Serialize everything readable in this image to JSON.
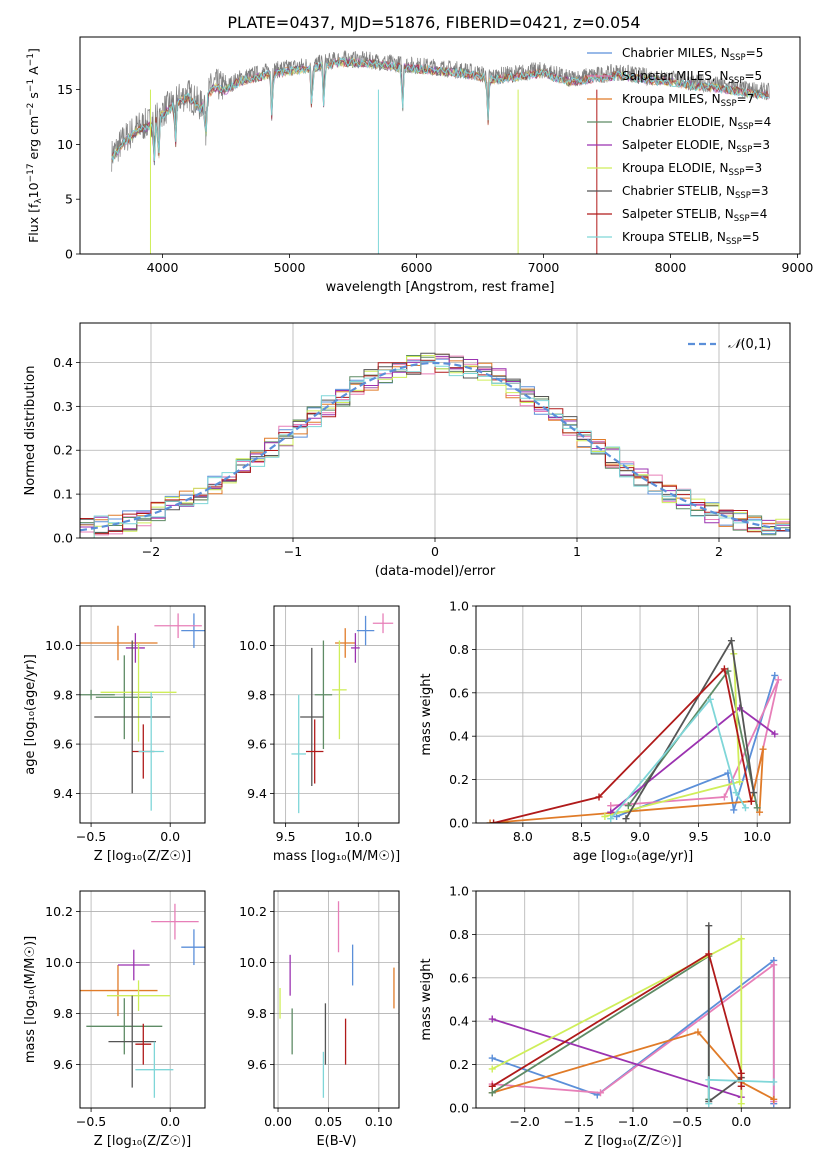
{
  "figure_title": "PLATE=0437, MJD=51876, FIBERID=0421, z=0.054",
  "colors": {
    "chabrier_miles": "#5b8fd9",
    "salpeter_miles": "#e77fb8",
    "kroupa_miles": "#e07b28",
    "chabrier_elodie": "#5e8b65",
    "salpeter_elodie": "#9b32b0",
    "kroupa_elodie": "#cfee5a",
    "chabrier_stelib": "#555555",
    "salpeter_stelib": "#b01a1a",
    "kroupa_stelib": "#7fd6d8",
    "grid": "#b0b0b0",
    "data_gray": "#808080",
    "normal_curve": "#5b8fd9"
  },
  "chart_data": [
    {
      "id": "spectrum",
      "type": "line",
      "xlabel": "wavelength [Angstrom, rest frame]",
      "ylabel_parts": {
        "pre": "Flux [f",
        "sub1": "λ",
        "mid": "10",
        "sup1": "−17",
        "post": " erg cm",
        "sup2": "−2",
        "post2": " s",
        "sup3": "−1",
        "post3": " A",
        "sup4": "−1",
        "post4": "]"
      },
      "xlim": [
        3350,
        9020
      ],
      "ylim": [
        0,
        19.8
      ],
      "xticks": [
        4000,
        5000,
        6000,
        7000,
        8000,
        9000
      ],
      "yticks": [
        0,
        5,
        10,
        15
      ],
      "continuum": {
        "x": [
          3600,
          3700,
          3800,
          3900,
          4000,
          4100,
          4200,
          4300,
          4400,
          4500,
          4600,
          4800,
          5000,
          5200,
          5400,
          5600,
          5800,
          6000,
          6200,
          6400,
          6600,
          6800,
          7000,
          7200,
          7400,
          7600,
          7800,
          8000,
          8200,
          8400,
          8600,
          8780
        ],
        "y": [
          9.0,
          10.5,
          11.5,
          12.0,
          13.0,
          14.0,
          14.6,
          13.5,
          15.5,
          15.2,
          16.0,
          16.6,
          17.0,
          17.3,
          17.8,
          17.7,
          17.4,
          17.2,
          17.0,
          16.7,
          16.2,
          16.5,
          16.8,
          16.0,
          16.3,
          16.6,
          16.2,
          16.0,
          15.6,
          15.4,
          15.0,
          14.8
        ]
      },
      "legend": [
        {
          "label": "Chabrier MILES, N",
          "n": "=5",
          "color": "#5b8fd9"
        },
        {
          "label": "Salpeter MILES, N",
          "n": "=5",
          "color": "#e77fb8"
        },
        {
          "label": "Kroupa MILES, N",
          "n": "=7",
          "color": "#e07b28"
        },
        {
          "label": "Chabrier ELODIE, N",
          "n": "=4",
          "color": "#5e8b65"
        },
        {
          "label": "Salpeter ELODIE, N",
          "n": "=3",
          "color": "#9b32b0"
        },
        {
          "label": "Kroupa ELODIE, N",
          "n": "=3",
          "color": "#cfee5a"
        },
        {
          "label": "Chabrier STELIB, N",
          "n": "=3",
          "color": "#555555"
        },
        {
          "label": "Salpeter STELIB, N",
          "n": "=4",
          "color": "#b01a1a"
        },
        {
          "label": "Kroupa STELIB, N",
          "n": "=5",
          "color": "#7fd6d8"
        }
      ],
      "legend_sub": "SSP"
    },
    {
      "id": "residuals",
      "type": "histogram",
      "xlabel": "(data-model)/error",
      "ylabel": "Normed distribution",
      "xlim": [
        -2.5,
        2.5
      ],
      "ylim": [
        0,
        0.49
      ],
      "xticks": [
        -2,
        -1,
        0,
        1,
        2
      ],
      "yticks": [
        0.0,
        0.1,
        0.2,
        0.3,
        0.4
      ],
      "bin_width": 0.1,
      "legend_label": "(0,1)",
      "legend_symbol": "𝒩"
    },
    {
      "id": "age_vs_Z",
      "type": "scatter",
      "xlabel": "Z [log₁₀(Z/Z☉)]",
      "ylabel": "age  [log₁₀(age/yr)]",
      "xlim": [
        -0.57,
        0.22
      ],
      "ylim": [
        9.28,
        10.16
      ],
      "xticks": [
        -0.5,
        0.0
      ],
      "yticks": [
        9.4,
        9.6,
        9.8,
        10.0
      ],
      "points": [
        {
          "x": 0.15,
          "y": 10.06,
          "xerr": 0.08,
          "yerr": 0.07,
          "color": "#5b8fd9"
        },
        {
          "x": 0.05,
          "y": 10.08,
          "xerr": 0.15,
          "yerr": 0.05,
          "color": "#e77fb8"
        },
        {
          "x": -0.33,
          "y": 10.01,
          "xerr": 0.25,
          "yerr": 0.07,
          "color": "#e07b28"
        },
        {
          "x": -0.29,
          "y": 9.79,
          "xerr": 0.18,
          "yerr": 0.17,
          "color": "#5e8b65"
        },
        {
          "x": -0.22,
          "y": 9.99,
          "xerr": 0.06,
          "yerr": 0.06,
          "color": "#9b32b0"
        },
        {
          "x": -0.2,
          "y": 9.81,
          "xerr": 0.24,
          "yerr": 0.2,
          "color": "#cfee5a"
        },
        {
          "x": -0.24,
          "y": 9.71,
          "xerr": 0.24,
          "yerr": 0.31,
          "color": "#555555"
        },
        {
          "x": -0.17,
          "y": 9.57,
          "xerr": 0.07,
          "yerr": 0.11,
          "color": "#b01a1a"
        },
        {
          "x": -0.12,
          "y": 9.57,
          "xerr": 0.08,
          "yerr": 0.24,
          "color": "#7fd6d8"
        },
        {
          "x": -0.5,
          "y": 9.8,
          "xerr": 0.15,
          "yerr": 0.02,
          "color": "#5e8b65"
        }
      ]
    },
    {
      "id": "age_vs_mass",
      "type": "scatter",
      "xlabel": "mass [log₁₀(M/M☉)]",
      "ylabel": "",
      "xlim": [
        9.42,
        10.28
      ],
      "ylim": [
        9.28,
        10.16
      ],
      "xticks": [
        9.5,
        10.0
      ],
      "yticks": [
        9.4,
        9.6,
        9.8,
        10.0
      ],
      "points": [
        {
          "x": 10.05,
          "y": 10.06,
          "xerr": 0.06,
          "yerr": 0.06,
          "color": "#5b8fd9"
        },
        {
          "x": 10.17,
          "y": 10.09,
          "xerr": 0.07,
          "yerr": 0.04,
          "color": "#e77fb8"
        },
        {
          "x": 9.91,
          "y": 10.01,
          "xerr": 0.07,
          "yerr": 0.06,
          "color": "#e07b28"
        },
        {
          "x": 9.76,
          "y": 9.8,
          "xerr": 0.06,
          "yerr": 0.22,
          "color": "#5e8b65"
        },
        {
          "x": 9.98,
          "y": 9.99,
          "xerr": 0.03,
          "yerr": 0.06,
          "color": "#9b32b0"
        },
        {
          "x": 9.87,
          "y": 9.82,
          "xerr": 0.05,
          "yerr": 0.2,
          "color": "#cfee5a"
        },
        {
          "x": 9.68,
          "y": 9.71,
          "xerr": 0.08,
          "yerr": 0.28,
          "color": "#555555"
        },
        {
          "x": 9.7,
          "y": 9.57,
          "xerr": 0.06,
          "yerr": 0.13,
          "color": "#b01a1a"
        },
        {
          "x": 9.59,
          "y": 9.56,
          "xerr": 0.05,
          "yerr": 0.24,
          "color": "#7fd6d8"
        }
      ]
    },
    {
      "id": "weight_vs_age",
      "type": "line",
      "xlabel": "age  [log₁₀(age/yr)]",
      "ylabel": "mass weight",
      "xlim": [
        7.6,
        10.28
      ],
      "ylim": [
        0,
        1.0
      ],
      "xticks": [
        8.0,
        8.5,
        9.0,
        9.5,
        10.0
      ],
      "yticks": [
        0.0,
        0.2,
        0.4,
        0.6,
        0.8,
        1.0
      ],
      "series": [
        {
          "color": "#5b8fd9",
          "x": [
            8.8,
            9.75,
            9.8,
            10.15
          ],
          "y": [
            0.03,
            0.23,
            0.06,
            0.68
          ]
        },
        {
          "color": "#e77fb8",
          "x": [
            8.75,
            9.72,
            10.18,
            9.95
          ],
          "y": [
            0.08,
            0.12,
            0.66,
            0.1
          ]
        },
        {
          "color": "#e07b28",
          "x": [
            7.72,
            9.95,
            10.05,
            10.02
          ],
          "y": [
            0.0,
            0.1,
            0.34,
            0.05
          ]
        },
        {
          "color": "#5e8b65",
          "x": [
            8.9,
            9.75,
            10.0
          ],
          "y": [
            0.08,
            0.7,
            0.07
          ]
        },
        {
          "color": "#9b32b0",
          "x": [
            8.75,
            9.85,
            10.15
          ],
          "y": [
            0.05,
            0.53,
            0.41
          ]
        },
        {
          "color": "#cfee5a",
          "x": [
            8.7,
            9.85,
            9.8
          ],
          "y": [
            0.03,
            0.19,
            0.78
          ]
        },
        {
          "color": "#555555",
          "x": [
            8.88,
            9.78,
            9.97
          ],
          "y": [
            0.02,
            0.84,
            0.14
          ]
        },
        {
          "color": "#b01a1a",
          "x": [
            7.75,
            8.65,
            9.72,
            9.95
          ],
          "y": [
            0.0,
            0.12,
            0.71,
            0.1
          ]
        },
        {
          "color": "#7fd6d8",
          "x": [
            8.75,
            9.6,
            9.82,
            9.9
          ],
          "y": [
            0.02,
            0.57,
            0.14,
            0.07
          ]
        }
      ]
    },
    {
      "id": "mass_vs_Z",
      "type": "scatter",
      "xlabel": "Z [log₁₀(Z/Z☉)]",
      "ylabel": "mass [log₁₀(M/M☉)]",
      "xlim": [
        -0.57,
        0.22
      ],
      "ylim": [
        9.43,
        10.28
      ],
      "xticks": [
        -0.5,
        0.0
      ],
      "yticks": [
        9.6,
        9.8,
        10.0,
        10.2
      ],
      "points": [
        {
          "x": 0.15,
          "y": 10.06,
          "xerr": 0.08,
          "yerr": 0.07,
          "color": "#5b8fd9"
        },
        {
          "x": 0.03,
          "y": 10.16,
          "xerr": 0.15,
          "yerr": 0.07,
          "color": "#e77fb8"
        },
        {
          "x": -0.33,
          "y": 9.89,
          "xerr": 0.25,
          "yerr": 0.1,
          "color": "#e07b28"
        },
        {
          "x": -0.29,
          "y": 9.75,
          "xerr": 0.24,
          "yerr": 0.11,
          "color": "#5e8b65"
        },
        {
          "x": -0.23,
          "y": 9.99,
          "xerr": 0.1,
          "yerr": 0.06,
          "color": "#9b32b0"
        },
        {
          "x": -0.2,
          "y": 9.87,
          "xerr": 0.2,
          "yerr": 0.06,
          "color": "#cfee5a"
        },
        {
          "x": -0.24,
          "y": 9.69,
          "xerr": 0.15,
          "yerr": 0.18,
          "color": "#555555"
        },
        {
          "x": -0.17,
          "y": 9.68,
          "xerr": 0.05,
          "yerr": 0.08,
          "color": "#b01a1a"
        },
        {
          "x": -0.1,
          "y": 9.58,
          "xerr": 0.12,
          "yerr": 0.11,
          "color": "#7fd6d8"
        }
      ]
    },
    {
      "id": "mass_vs_ebv",
      "type": "scatter",
      "xlabel": "E(B-V)",
      "ylabel": "",
      "xlim": [
        -0.004,
        0.12
      ],
      "ylim": [
        9.43,
        10.28
      ],
      "xticks": [
        0.0,
        0.05,
        0.1
      ],
      "yticks": [
        9.6,
        9.8,
        10.0,
        10.2
      ],
      "points": [
        {
          "x": 0.074,
          "y": 9.99,
          "yerr": 0.08,
          "color": "#5b8fd9"
        },
        {
          "x": 0.06,
          "y": 10.14,
          "yerr": 0.1,
          "color": "#e77fb8"
        },
        {
          "x": 0.115,
          "y": 9.9,
          "yerr": 0.08,
          "color": "#e07b28"
        },
        {
          "x": 0.014,
          "y": 9.73,
          "yerr": 0.09,
          "color": "#5e8b65"
        },
        {
          "x": 0.012,
          "y": 9.95,
          "yerr": 0.08,
          "color": "#9b32b0"
        },
        {
          "x": 0.002,
          "y": 9.84,
          "yerr": 0.06,
          "color": "#cfee5a"
        },
        {
          "x": 0.047,
          "y": 9.72,
          "yerr": 0.12,
          "color": "#555555"
        },
        {
          "x": 0.067,
          "y": 9.69,
          "yerr": 0.09,
          "color": "#b01a1a"
        },
        {
          "x": 0.045,
          "y": 9.56,
          "yerr": 0.09,
          "color": "#7fd6d8"
        }
      ]
    },
    {
      "id": "weight_vs_Z",
      "type": "line",
      "xlabel": "Z [log₁₀(Z/Z☉)]",
      "ylabel": "mass weight",
      "xlim": [
        -2.45,
        0.45
      ],
      "ylim": [
        0,
        1.0
      ],
      "xticks": [
        -2.0,
        -1.5,
        -1.0,
        -0.5,
        0.0
      ],
      "yticks": [
        0.0,
        0.2,
        0.4,
        0.6,
        0.8,
        1.0
      ],
      "series": [
        {
          "color": "#5b8fd9",
          "x": [
            -2.3,
            -1.33,
            0.3,
            0.3
          ],
          "y": [
            0.23,
            0.06,
            0.68,
            0.02
          ]
        },
        {
          "color": "#e77fb8",
          "x": [
            -2.3,
            -1.3,
            0.3,
            0.3
          ],
          "y": [
            0.11,
            0.07,
            0.66,
            0.03
          ]
        },
        {
          "color": "#e07b28",
          "x": [
            -2.3,
            -0.4,
            0.0,
            0.3
          ],
          "y": [
            0.07,
            0.35,
            0.12,
            0.04
          ]
        },
        {
          "color": "#5e8b65",
          "x": [
            -2.3,
            -0.3,
            -0.3
          ],
          "y": [
            0.07,
            0.7,
            0.04
          ]
        },
        {
          "color": "#9b32b0",
          "x": [
            -2.3,
            0.0,
            0.0
          ],
          "y": [
            0.41,
            0.05,
            0.1
          ]
        },
        {
          "color": "#cfee5a",
          "x": [
            -2.3,
            0.0,
            0.0
          ],
          "y": [
            0.18,
            0.78,
            0.02
          ]
        },
        {
          "color": "#555555",
          "x": [
            -0.3,
            -0.3,
            0.0
          ],
          "y": [
            0.84,
            0.03,
            0.14
          ]
        },
        {
          "color": "#b01a1a",
          "x": [
            -2.3,
            -0.3,
            0.0,
            0.0
          ],
          "y": [
            0.1,
            0.71,
            0.16,
            0.1
          ]
        },
        {
          "color": "#7fd6d8",
          "x": [
            -0.3,
            -0.3,
            0.3
          ],
          "y": [
            0.02,
            0.13,
            0.12
          ]
        }
      ]
    }
  ]
}
